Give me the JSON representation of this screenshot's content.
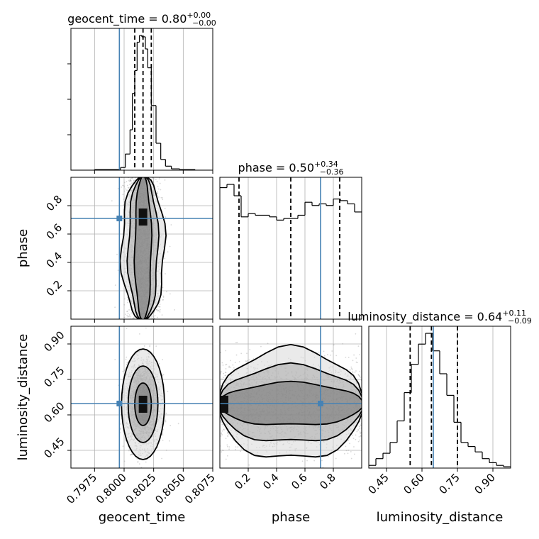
{
  "chart_data": {
    "type": "corner",
    "parameters": [
      {
        "name": "geocent_time",
        "label": "geocent_time",
        "range": [
          0.7955,
          0.8075
        ],
        "ticks": [
          0.7975,
          0.8,
          0.8025,
          0.805,
          0.8075
        ],
        "tick_labels": [
          "0.7975",
          "0.8000",
          "0.8025",
          "0.8050",
          "0.8075"
        ],
        "title": {
          "prefix": "geocent_time = 0.80",
          "plus": "+0.00",
          "minus": "−0.00"
        },
        "injection": 0.7996,
        "quantiles": [
          0.8009,
          0.8016,
          0.8023
        ],
        "hist": {
          "edges": [
            0.7955,
            0.7975,
            0.7997,
            0.8001,
            0.8005,
            0.8007,
            0.8009,
            0.8011,
            0.8013,
            0.8015,
            0.8018,
            0.802,
            0.8023,
            0.8027,
            0.8031,
            0.8035,
            0.804,
            0.8047,
            0.806,
            0.8075
          ],
          "counts": [
            0,
            0.5,
            2,
            12,
            30,
            57,
            74,
            95,
            100,
            99,
            90,
            76,
            48,
            20,
            8,
            3,
            1,
            0.5,
            0
          ]
        }
      },
      {
        "name": "phase",
        "label": "phase",
        "range": [
          0.0,
          1.0
        ],
        "ticks": [
          0.2,
          0.4,
          0.6,
          0.8
        ],
        "tick_labels": [
          "0.2",
          "0.4",
          "0.6",
          "0.8"
        ],
        "title": {
          "prefix": "phase = 0.50",
          "plus": "+0.34",
          "minus": "−0.36"
        },
        "injection": 0.71,
        "quantiles": [
          0.135,
          0.5,
          0.845
        ],
        "hist": {
          "edges": [
            0.0,
            0.05,
            0.1,
            0.15,
            0.2,
            0.25,
            0.3,
            0.35,
            0.4,
            0.45,
            0.5,
            0.55,
            0.6,
            0.65,
            0.7,
            0.75,
            0.8,
            0.85,
            0.9,
            0.95,
            1.0
          ],
          "counts": [
            81,
            83,
            76,
            63,
            65,
            64,
            64,
            63,
            61,
            62,
            62,
            64,
            72,
            70,
            71,
            70,
            74,
            73,
            71,
            66
          ]
        }
      },
      {
        "name": "luminosity_distance",
        "label": "luminosity_distance",
        "range": [
          0.375,
          0.975
        ],
        "ticks": [
          0.45,
          0.6,
          0.75,
          0.9
        ],
        "tick_labels": [
          "0.45",
          "0.60",
          "0.75",
          "0.90"
        ],
        "title": {
          "prefix": "luminosity_distance = 0.64",
          "plus": "+0.11",
          "minus": "−0.09"
        },
        "injection": 0.648,
        "quantiles": [
          0.55,
          0.64,
          0.75
        ],
        "hist": {
          "edges": [
            0.375,
            0.405,
            0.435,
            0.465,
            0.495,
            0.525,
            0.555,
            0.585,
            0.615,
            0.645,
            0.675,
            0.705,
            0.735,
            0.765,
            0.795,
            0.825,
            0.855,
            0.885,
            0.915,
            0.945,
            0.975
          ],
          "counts": [
            2,
            7,
            11,
            19,
            35,
            56,
            77,
            92,
            100,
            87,
            70,
            54,
            34,
            19,
            16,
            12,
            7,
            4,
            2,
            1
          ]
        }
      }
    ],
    "pairs": [
      {
        "x": "geocent_time",
        "y": "phase",
        "center_x": 0.8016,
        "spread_x": 0.0007,
        "y_uniform": [
          0.0,
          1.0
        ]
      },
      {
        "x": "geocent_time",
        "y": "luminosity_distance",
        "center_x": 0.8016,
        "spread_x": 0.0007,
        "center_y": 0.645,
        "spread_y": 0.09
      },
      {
        "x": "phase",
        "y": "luminosity_distance",
        "x_uniform": [
          0.0,
          1.0
        ],
        "center_y": 0.645,
        "spread_y": 0.09
      }
    ],
    "grid": true,
    "colors": {
      "injection": "#4682b4",
      "hist": "#000000",
      "grid": "#b0b0b0",
      "density": "#000000",
      "samples": "#8f8f8f"
    }
  }
}
